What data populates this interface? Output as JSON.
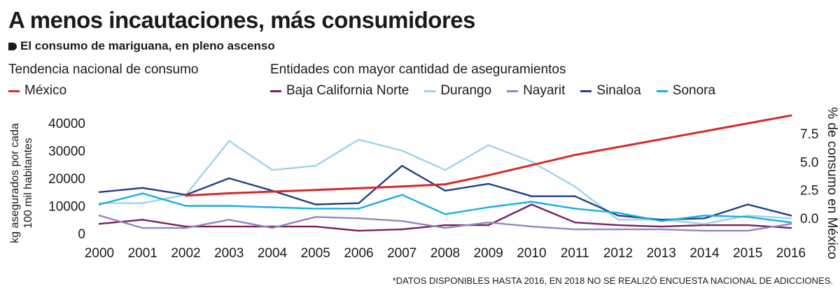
{
  "title": "A menos incautaciones, más consumidores",
  "subtitle": "El consumo de mariguana, en pleno ascenso",
  "left_group_title": "Tendencia nacional de consumo",
  "right_group_title": "Entidades con mayor cantidad de aseguramientos",
  "footnote": "*DATOS DISPONIBLES HASTA 2016, EN 2018 NO SE REALIZÓ ENCUESTA NACIONAL DE ADICCIONES.",
  "chart_data": {
    "type": "line",
    "x": [
      2000,
      2001,
      2002,
      2003,
      2004,
      2005,
      2006,
      2007,
      2008,
      2009,
      2010,
      2011,
      2012,
      2013,
      2014,
      2015,
      2016
    ],
    "left_axis": {
      "label": "kg asegurados por cada 100 mil habitantes",
      "ticks": [
        40000,
        30000,
        20000,
        10000,
        0
      ],
      "tick_labels": [
        "40000",
        "30000",
        "20000",
        "10000",
        "0"
      ]
    },
    "right_axis": {
      "label": "% de consumo en México",
      "ticks": [
        7.5,
        5.0,
        2.5,
        0.0
      ],
      "tick_labels": [
        "7.5",
        "5.0",
        "2.5",
        "0.0"
      ]
    },
    "series": [
      {
        "name": "México",
        "axis": "right",
        "color": "#d62a2a",
        "values": [
          null,
          null,
          2.0,
          2.2,
          2.35,
          2.5,
          2.65,
          2.8,
          3.0,
          3.8,
          4.7,
          5.6,
          6.3,
          7.0,
          7.7,
          8.4,
          9.1
        ]
      },
      {
        "name": "Baja California Norte",
        "axis": "left",
        "color": "#7a1f5c",
        "values": [
          3500,
          5000,
          2500,
          2500,
          2500,
          2500,
          1000,
          1500,
          3000,
          3000,
          10500,
          4000,
          3000,
          2500,
          3000,
          3000,
          2000
        ]
      },
      {
        "name": "Durango",
        "axis": "left",
        "color": "#9fd3ec",
        "values": [
          11000,
          11000,
          14000,
          33500,
          23000,
          24500,
          34000,
          30000,
          23000,
          32000,
          26000,
          17000,
          5000,
          5000,
          3500,
          6500,
          5500
        ]
      },
      {
        "name": "Nayarit",
        "axis": "left",
        "color": "#8e88c1",
        "values": [
          6500,
          2000,
          2000,
          5000,
          2000,
          6000,
          5500,
          4500,
          2000,
          4000,
          2500,
          1500,
          1500,
          1500,
          1000,
          1000,
          3500
        ]
      },
      {
        "name": "Sinaloa",
        "axis": "left",
        "color": "#1f3f8a",
        "values": [
          15000,
          16500,
          14000,
          20000,
          15500,
          10500,
          11000,
          24500,
          15500,
          18000,
          13500,
          13500,
          6500,
          5000,
          5500,
          10500,
          6500
        ]
      },
      {
        "name": "Sonora",
        "axis": "left",
        "color": "#19aee0",
        "values": [
          10500,
          14500,
          10000,
          10000,
          9500,
          9000,
          9000,
          14000,
          7000,
          9500,
          11500,
          9000,
          7500,
          4500,
          6500,
          6000,
          4000
        ]
      }
    ]
  }
}
